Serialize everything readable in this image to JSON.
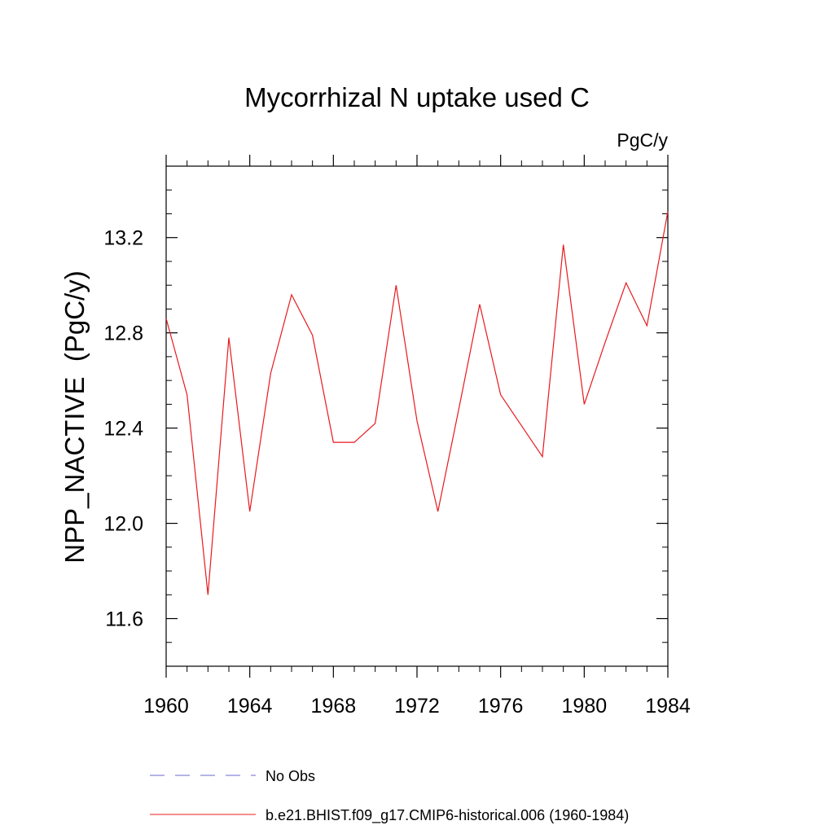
{
  "chart_data": {
    "type": "line",
    "title": "Mycorrhizal N uptake used C",
    "units_label": "PgC/y",
    "ylabel": "NPP_NACTIVE  (PgC/y)",
    "xlabel": "",
    "xlim": [
      1960,
      1984
    ],
    "ylim": [
      11.4,
      13.5
    ],
    "x_ticks": [
      1960,
      1964,
      1968,
      1972,
      1976,
      1980,
      1984
    ],
    "x_tick_labels": [
      "1960",
      "1964",
      "1968",
      "1972",
      "1976",
      "1980",
      "1984"
    ],
    "y_ticks": [
      11.6,
      12.0,
      12.4,
      12.8,
      13.2
    ],
    "y_tick_labels": [
      "11.6",
      "12.0",
      "12.4",
      "12.8",
      "13.2"
    ],
    "grid": false,
    "legend_position": "bottom",
    "series": [
      {
        "name": "No Obs",
        "color": "#6a6acd",
        "style": "dashed",
        "x": [],
        "values": []
      },
      {
        "name": "b.e21.BHIST.f09_g17.CMIP6-historical.006 (1960-1984)",
        "color": "#e8191e",
        "style": "solid",
        "x": [
          1960,
          1961,
          1962,
          1963,
          1964,
          1965,
          1966,
          1967,
          1968,
          1969,
          1970,
          1971,
          1972,
          1973,
          1974,
          1975,
          1976,
          1977,
          1978,
          1979,
          1980,
          1981,
          1982,
          1983,
          1984
        ],
        "values": [
          12.86,
          12.54,
          11.7,
          12.78,
          12.05,
          12.63,
          12.96,
          12.79,
          12.34,
          12.34,
          12.42,
          13.0,
          12.43,
          12.05,
          12.48,
          12.92,
          12.54,
          12.41,
          12.28,
          13.17,
          12.5,
          12.76,
          13.01,
          12.83,
          13.31
        ]
      }
    ]
  }
}
